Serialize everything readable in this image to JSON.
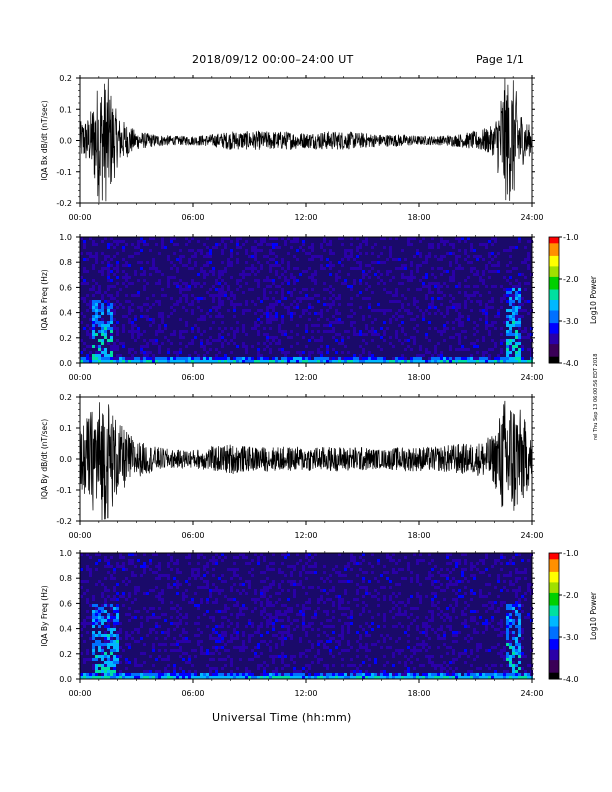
{
  "header": {
    "date_range": "2018/09/12  00:00–24:00 UT",
    "page": "Page 1/1"
  },
  "footer": {
    "xlabel": "Universal Time (hh:mm)"
  },
  "side_stamp": "rel Thu Sep 13 06:00:56 EDT 2018",
  "chart_data": [
    {
      "type": "line",
      "ylabel": "IQA Bx dB/dt (nT/sec)",
      "xlim": [
        0,
        24
      ],
      "ylim": [
        -0.2,
        0.2
      ],
      "yticks": [
        "0.2",
        "0.1",
        "0.0",
        "-0.1",
        "-0.2"
      ],
      "xticks": [
        "00:00",
        "06:00",
        "12:00",
        "18:00",
        "24:00"
      ],
      "series": [
        {
          "x": [
            0,
            0.5,
            1,
            1.5,
            2,
            3,
            4,
            5,
            6,
            7,
            8,
            9,
            10,
            11,
            12,
            13,
            14,
            15,
            16,
            17,
            18,
            19,
            20,
            21,
            22,
            22.5,
            23,
            23.5,
            24
          ],
          "amplitude": [
            0.06,
            0.08,
            0.2,
            0.2,
            0.08,
            0.03,
            0.02,
            0.015,
            0.015,
            0.02,
            0.03,
            0.03,
            0.03,
            0.03,
            0.025,
            0.03,
            0.03,
            0.025,
            0.02,
            0.02,
            0.015,
            0.015,
            0.02,
            0.03,
            0.05,
            0.2,
            0.2,
            0.08,
            0.04
          ]
        }
      ]
    },
    {
      "type": "heatmap",
      "ylabel": "IQA Bx Freq (Hz)",
      "xlim": [
        0,
        24
      ],
      "ylim": [
        0,
        1.0
      ],
      "yticks": [
        "1.0",
        "0.8",
        "0.6",
        "0.4",
        "0.2",
        "0.0"
      ],
      "xticks": [
        "00:00",
        "06:00",
        "12:00",
        "18:00",
        "24:00"
      ],
      "colorbar": {
        "label": "Log10 Power",
        "range": [
          -4.0,
          -1.0
        ],
        "ticks": [
          "-1.0",
          "-2.0",
          "-3.0",
          "-4.0"
        ]
      },
      "features": [
        {
          "t": [
            0.5,
            1.6
          ],
          "f": [
            0,
            0.5
          ],
          "level": -2.5
        },
        {
          "t": [
            7.0,
            8.3
          ],
          "f": [
            0.4,
            0.95
          ],
          "level": -3.2
        },
        {
          "t": [
            9.5,
            11.5
          ],
          "f": [
            0.35,
            0.95
          ],
          "level": -3.2
        },
        {
          "t": [
            22.5,
            23.3
          ],
          "f": [
            0,
            0.6
          ],
          "level": -2.5
        }
      ]
    },
    {
      "type": "line",
      "ylabel": "IQA By dB/dt (nT/sec)",
      "xlim": [
        0,
        24
      ],
      "ylim": [
        -0.2,
        0.2
      ],
      "yticks": [
        "0.2",
        "0.1",
        "0.0",
        "-0.1",
        "-0.2"
      ],
      "xticks": [
        "00:00",
        "06:00",
        "12:00",
        "18:00",
        "24:00"
      ],
      "series": [
        {
          "x": [
            0,
            0.5,
            1,
            1.5,
            2,
            3,
            4,
            5,
            6,
            7,
            8,
            9,
            10,
            11,
            12,
            13,
            14,
            15,
            16,
            17,
            18,
            19,
            20,
            21,
            22,
            22.5,
            23,
            23.5,
            24
          ],
          "amplitude": [
            0.1,
            0.15,
            0.2,
            0.2,
            0.12,
            0.06,
            0.04,
            0.03,
            0.03,
            0.04,
            0.05,
            0.04,
            0.04,
            0.04,
            0.04,
            0.04,
            0.04,
            0.04,
            0.03,
            0.04,
            0.04,
            0.04,
            0.05,
            0.05,
            0.08,
            0.2,
            0.2,
            0.15,
            0.06
          ]
        }
      ]
    },
    {
      "type": "heatmap",
      "ylabel": "IQA By Freq (Hz)",
      "xlim": [
        0,
        24
      ],
      "ylim": [
        0,
        1.0
      ],
      "yticks": [
        "1.0",
        "0.8",
        "0.6",
        "0.4",
        "0.2",
        "0.0"
      ],
      "xticks": [
        "00:00",
        "06:00",
        "12:00",
        "18:00",
        "24:00"
      ],
      "colorbar": {
        "label": "Log10 Power",
        "range": [
          -4.0,
          -1.0
        ],
        "ticks": [
          "-1.0",
          "-2.0",
          "-3.0",
          "-4.0"
        ]
      },
      "features": [
        {
          "t": [
            0.5,
            2.0
          ],
          "f": [
            0,
            0.6
          ],
          "level": -2.5
        },
        {
          "t": [
            7.0,
            8.3
          ],
          "f": [
            0.3,
            0.95
          ],
          "level": -3.2
        },
        {
          "t": [
            9.5,
            11.5
          ],
          "f": [
            0.4,
            0.95
          ],
          "level": -3.2
        },
        {
          "t": [
            22.5,
            23.3
          ],
          "f": [
            0,
            0.6
          ],
          "level": -2.5
        }
      ]
    }
  ]
}
